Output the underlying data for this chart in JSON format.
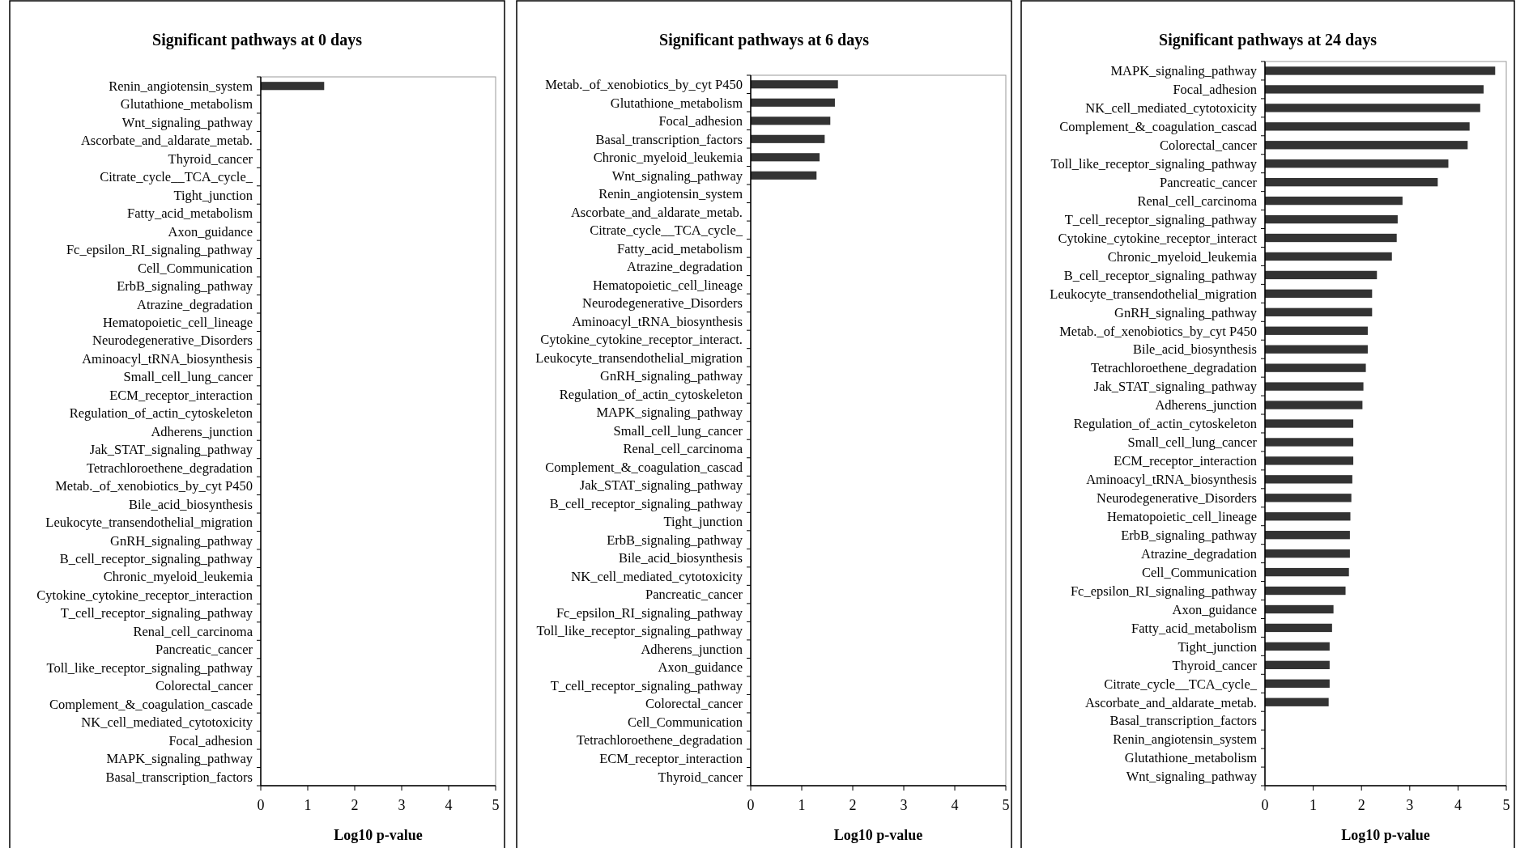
{
  "chart_data": [
    {
      "type": "bar",
      "orientation": "horizontal",
      "title": "Significant pathways at 0 days",
      "xlabel": "Log10 p-value",
      "color": "#333333",
      "xlim": [
        0,
        5
      ],
      "xticks": [
        0,
        1,
        2,
        3,
        4,
        5
      ],
      "categories": [
        "Renin_angiotensin_system",
        "Glutathione_metabolism",
        "Wnt_signaling_pathway",
        "Ascorbate_and_aldarate_metab.",
        "Thyroid_cancer",
        "Citrate_cycle__TCA_cycle_",
        "Tight_junction",
        "Fatty_acid_metabolism",
        "Axon_guidance",
        "Fc_epsilon_RI_signaling_pathway",
        "Cell_Communication",
        "ErbB_signaling_pathway",
        "Atrazine_degradation",
        "Hematopoietic_cell_lineage",
        "Neurodegenerative_Disorders",
        "Aminoacyl_tRNA_biosynthesis",
        "Small_cell_lung_cancer",
        "ECM_receptor_interaction",
        "Regulation_of_actin_cytoskeleton",
        "Adherens_junction",
        "Jak_STAT_signaling_pathway",
        "Tetrachloroethene_degradation",
        "Metab._of_xenobiotics_by_cyt P450",
        "Bile_acid_biosynthesis",
        "Leukocyte_transendothelial_migration",
        "GnRH_signaling_pathway",
        "B_cell_receptor_signaling_pathway",
        "Chronic_myeloid_leukemia",
        "Cytokine_cytokine_receptor_interaction",
        "T_cell_receptor_signaling_pathway",
        "Renal_cell_carcinoma",
        "Pancreatic_cancer",
        "Toll_like_receptor_signaling_pathway",
        "Colorectal_cancer",
        "Complement_&_coagulation_cascade",
        "NK_cell_mediated_cytotoxicity",
        "Focal_adhesion",
        "MAPK_signaling_pathway",
        "Basal_transcription_factors"
      ],
      "values": [
        1.35,
        null,
        null,
        null,
        null,
        null,
        null,
        null,
        null,
        null,
        null,
        null,
        null,
        null,
        null,
        null,
        null,
        null,
        null,
        null,
        null,
        null,
        null,
        null,
        null,
        null,
        null,
        null,
        null,
        null,
        null,
        null,
        null,
        null,
        null,
        null,
        null,
        null,
        null
      ]
    },
    {
      "type": "bar",
      "orientation": "horizontal",
      "title": "Significant pathways at 6 days",
      "xlabel": "Log10 p-value",
      "color": "#333333",
      "xlim": [
        0,
        5
      ],
      "xticks": [
        0,
        1,
        2,
        3,
        4,
        5
      ],
      "categories": [
        "Metab._of_xenobiotics_by_cyt P450",
        "Glutathione_metabolism",
        "Focal_adhesion",
        "Basal_transcription_factors",
        "Chronic_myeloid_leukemia",
        "Wnt_signaling_pathway",
        "Renin_angiotensin_system",
        "Ascorbate_and_aldarate_metab.",
        "Citrate_cycle__TCA_cycle_",
        "Fatty_acid_metabolism",
        "Atrazine_degradation",
        "Hematopoietic_cell_lineage",
        "Neurodegenerative_Disorders",
        "Aminoacyl_tRNA_biosynthesis",
        "Cytokine_cytokine_receptor_interact.",
        "Leukocyte_transendothelial_migration",
        "GnRH_signaling_pathway",
        "Regulation_of_actin_cytoskeleton",
        "MAPK_signaling_pathway",
        "Small_cell_lung_cancer",
        "Renal_cell_carcinoma",
        "Complement_&_coagulation_cascad",
        "Jak_STAT_signaling_pathway",
        "B_cell_receptor_signaling_pathway",
        "Tight_junction",
        "ErbB_signaling_pathway",
        "Bile_acid_biosynthesis",
        "NK_cell_mediated_cytotoxicity",
        "Pancreatic_cancer",
        "Fc_epsilon_RI_signaling_pathway",
        "Toll_like_receptor_signaling_pathway",
        "Adherens_junction",
        "Axon_guidance",
        "T_cell_receptor_signaling_pathway",
        "Colorectal_cancer",
        "Cell_Communication",
        "Tetrachloroethene_degradation",
        "ECM_receptor_interaction",
        "Thyroid_cancer"
      ],
      "values": [
        1.71,
        1.65,
        1.56,
        1.45,
        1.35,
        1.29,
        null,
        null,
        null,
        null,
        null,
        null,
        null,
        null,
        null,
        null,
        null,
        null,
        null,
        null,
        null,
        null,
        null,
        null,
        null,
        null,
        null,
        null,
        null,
        null,
        null,
        null,
        null,
        null,
        null,
        null,
        null,
        null,
        null
      ]
    },
    {
      "type": "bar",
      "orientation": "horizontal",
      "title": "Significant pathways at 24 days",
      "xlabel": "Log10 p-value",
      "color": "#333333",
      "xlim": [
        0,
        5
      ],
      "xticks": [
        0,
        1,
        2,
        3,
        4,
        5
      ],
      "categories": [
        "MAPK_signaling_pathway",
        "Focal_adhesion",
        "NK_cell_mediated_cytotoxicity",
        "Complement_&_coagulation_cascad",
        "Colorectal_cancer",
        "Toll_like_receptor_signaling_pathway",
        "Pancreatic_cancer",
        "Renal_cell_carcinoma",
        "T_cell_receptor_signaling_pathway",
        "Cytokine_cytokine_receptor_interact",
        "Chronic_myeloid_leukemia",
        "B_cell_receptor_signaling_pathway",
        "Leukocyte_transendothelial_migration",
        "GnRH_signaling_pathway",
        "Metab._of_xenobiotics_by_cyt P450",
        "Bile_acid_biosynthesis",
        "Tetrachloroethene_degradation",
        "Jak_STAT_signaling_pathway",
        "Adherens_junction",
        "Regulation_of_actin_cytoskeleton",
        "Small_cell_lung_cancer",
        "ECM_receptor_interaction",
        "Aminoacyl_tRNA_biosynthesis",
        "Neurodegenerative_Disorders",
        "Hematopoietic_cell_lineage",
        "ErbB_signaling_pathway",
        "Atrazine_degradation",
        "Cell_Communication",
        "Fc_epsilon_RI_signaling_pathway",
        "Axon_guidance",
        "Fatty_acid_metabolism",
        "Tight_junction",
        "Thyroid_cancer",
        "Citrate_cycle__TCA_cycle_",
        "Ascorbate_and_aldarate_metab.",
        "Basal_transcription_factors",
        "Renin_angiotensin_system",
        "Glutathione_metabolism",
        "Wnt_signaling_pathway"
      ],
      "values": [
        4.77,
        4.53,
        4.46,
        4.24,
        4.2,
        3.8,
        3.58,
        2.85,
        2.75,
        2.73,
        2.63,
        2.32,
        2.22,
        2.22,
        2.13,
        2.13,
        2.09,
        2.04,
        2.02,
        1.83,
        1.83,
        1.83,
        1.81,
        1.79,
        1.77,
        1.76,
        1.76,
        1.74,
        1.67,
        1.42,
        1.39,
        1.34,
        1.34,
        1.34,
        1.32,
        null,
        null,
        null,
        null
      ]
    }
  ]
}
